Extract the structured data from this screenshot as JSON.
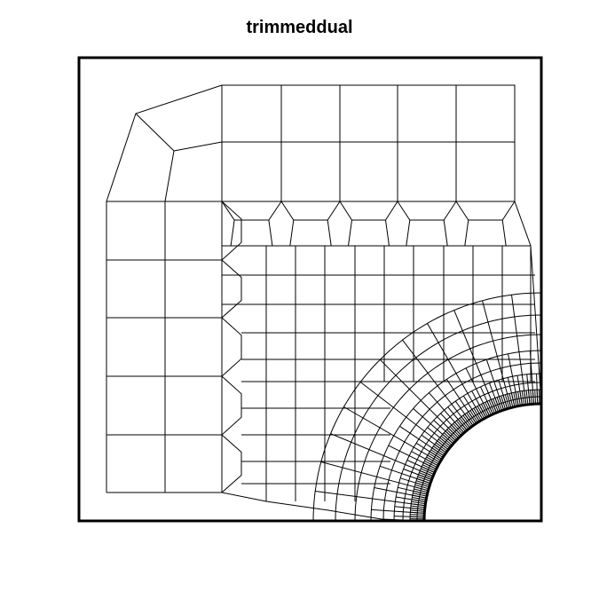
{
  "figure": {
    "title": "trimmeddual",
    "line_color": "#000000",
    "background": "#ffffff"
  }
}
